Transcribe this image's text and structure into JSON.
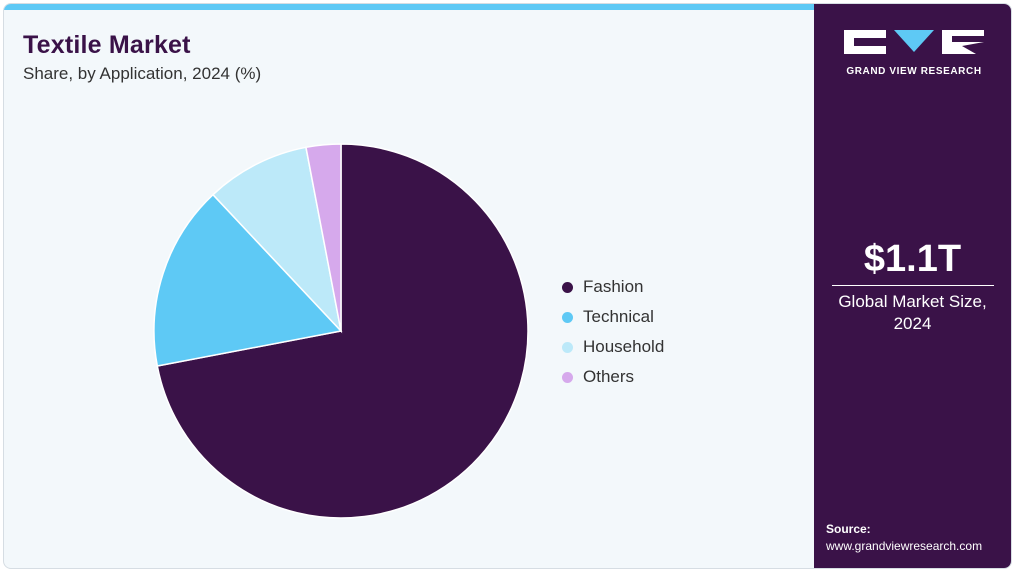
{
  "header": {
    "title": "Textile Market",
    "subtitle": "Share, by Application, 2024 (%)"
  },
  "chart_data": {
    "type": "pie",
    "categories": [
      "Fashion",
      "Technical",
      "Household",
      "Others"
    ],
    "values": [
      72.0,
      16.0,
      9.0,
      3.0
    ],
    "colors": [
      "#3a1248",
      "#5ec9f5",
      "#bce9f9",
      "#d6a9ec"
    ],
    "legend_position": "right"
  },
  "sidebar": {
    "brand": "GRAND VIEW RESEARCH",
    "market_size_value": "$1.1T",
    "market_size_label": "Global Market Size, 2024",
    "source_label": "Source:",
    "source_url": "www.grandviewresearch.com"
  }
}
